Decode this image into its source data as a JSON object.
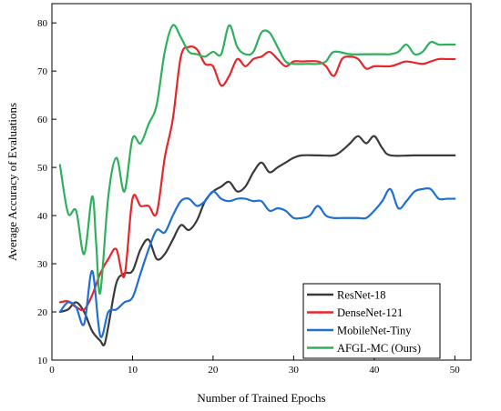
{
  "chart_data": {
    "type": "line",
    "xlabel": "Number of Trained Epochs",
    "ylabel": "Average Accuracy of Evaluations",
    "xlim": [
      0,
      52
    ],
    "ylim": [
      10,
      84
    ],
    "xticks": [
      0,
      10,
      20,
      30,
      40,
      50
    ],
    "yticks": [
      10,
      20,
      30,
      40,
      50,
      60,
      70,
      80
    ],
    "grid": false,
    "legend_position": "bottom-right",
    "series": [
      {
        "name": "ResNet-18",
        "color": "#3a3a3a",
        "points": [
          [
            1,
            20
          ],
          [
            2,
            20.5
          ],
          [
            3,
            22
          ],
          [
            4,
            20
          ],
          [
            5,
            16
          ],
          [
            6,
            14
          ],
          [
            6.5,
            13.2
          ],
          [
            7,
            17
          ],
          [
            8,
            26
          ],
          [
            9,
            28
          ],
          [
            10,
            28.5
          ],
          [
            11,
            33
          ],
          [
            12,
            35
          ],
          [
            13,
            31
          ],
          [
            14,
            32
          ],
          [
            15,
            35
          ],
          [
            16,
            38
          ],
          [
            17,
            37
          ],
          [
            18,
            39
          ],
          [
            19,
            43
          ],
          [
            20,
            45
          ],
          [
            21,
            46
          ],
          [
            22,
            47
          ],
          [
            23,
            45
          ],
          [
            24,
            46
          ],
          [
            25,
            49
          ],
          [
            26,
            51
          ],
          [
            27,
            49
          ],
          [
            28,
            50
          ],
          [
            29,
            51
          ],
          [
            30,
            52
          ],
          [
            31,
            52.5
          ],
          [
            33,
            52.5
          ],
          [
            35,
            52.5
          ],
          [
            36,
            53.5
          ],
          [
            37,
            55
          ],
          [
            38,
            56.5
          ],
          [
            39,
            55
          ],
          [
            40,
            56.5
          ],
          [
            41,
            54
          ],
          [
            42,
            52.5
          ],
          [
            45,
            52.5
          ],
          [
            50,
            52.5
          ]
        ]
      },
      {
        "name": "DenseNet-121",
        "color": "#e8262a",
        "points": [
          [
            1,
            22
          ],
          [
            2,
            22.2
          ],
          [
            3,
            21
          ],
          [
            4,
            20.5
          ],
          [
            5,
            23.5
          ],
          [
            6,
            28
          ],
          [
            7,
            31
          ],
          [
            8,
            33
          ],
          [
            9,
            27.5
          ],
          [
            10,
            43.5
          ],
          [
            11,
            42
          ],
          [
            12,
            42
          ],
          [
            13,
            40.5
          ],
          [
            14,
            52
          ],
          [
            15,
            60
          ],
          [
            16,
            73
          ],
          [
            17,
            75
          ],
          [
            18,
            74.5
          ],
          [
            19,
            71.5
          ],
          [
            20,
            71
          ],
          [
            21,
            67
          ],
          [
            22,
            69
          ],
          [
            23,
            72.5
          ],
          [
            24,
            71
          ],
          [
            25,
            72.5
          ],
          [
            26,
            73
          ],
          [
            27,
            74
          ],
          [
            28,
            72.5
          ],
          [
            29,
            71
          ],
          [
            30,
            72
          ],
          [
            31,
            72
          ],
          [
            33,
            72
          ],
          [
            34,
            71
          ],
          [
            35,
            69
          ],
          [
            36,
            72.5
          ],
          [
            37,
            73
          ],
          [
            38,
            72.5
          ],
          [
            39,
            70.5
          ],
          [
            40,
            71
          ],
          [
            42,
            71
          ],
          [
            43,
            71.5
          ],
          [
            44,
            72
          ],
          [
            46,
            71.5
          ],
          [
            47,
            72
          ],
          [
            48,
            72.5
          ],
          [
            49,
            72.5
          ],
          [
            50,
            72.5
          ]
        ]
      },
      {
        "name": "MobileNet-Tiny",
        "color": "#1f6fd6",
        "points": [
          [
            1,
            20
          ],
          [
            2,
            22
          ],
          [
            3,
            21
          ],
          [
            4,
            17.5
          ],
          [
            5,
            28.5
          ],
          [
            6,
            15
          ],
          [
            7,
            20
          ],
          [
            8,
            20.5
          ],
          [
            9,
            22
          ],
          [
            10,
            23
          ],
          [
            11,
            28
          ],
          [
            12,
            33
          ],
          [
            13,
            37
          ],
          [
            14,
            36.5
          ],
          [
            15,
            40
          ],
          [
            16,
            43
          ],
          [
            17,
            43.5
          ],
          [
            18,
            42
          ],
          [
            19,
            43
          ],
          [
            20,
            45
          ],
          [
            21,
            43.5
          ],
          [
            22,
            43
          ],
          [
            23,
            43.5
          ],
          [
            24,
            43.5
          ],
          [
            25,
            43
          ],
          [
            26,
            43
          ],
          [
            27,
            41
          ],
          [
            28,
            41.5
          ],
          [
            29,
            41
          ],
          [
            30,
            39.5
          ],
          [
            31,
            39.5
          ],
          [
            32,
            40
          ],
          [
            33,
            42
          ],
          [
            34,
            40
          ],
          [
            35,
            39.5
          ],
          [
            36,
            39.5
          ],
          [
            37,
            39.5
          ],
          [
            38,
            39.5
          ],
          [
            39,
            39.5
          ],
          [
            40,
            41
          ],
          [
            41,
            43
          ],
          [
            42,
            45.5
          ],
          [
            43,
            41.5
          ],
          [
            44,
            43
          ],
          [
            45,
            45
          ],
          [
            46,
            45.5
          ],
          [
            47,
            45.5
          ],
          [
            48,
            43.5
          ],
          [
            49,
            43.5
          ],
          [
            50,
            43.5
          ]
        ]
      },
      {
        "name": "AFGL-MC (Ours)",
        "color": "#2eb05c",
        "points": [
          [
            1,
            50.5
          ],
          [
            2,
            40.5
          ],
          [
            3,
            41
          ],
          [
            4,
            32
          ],
          [
            5,
            44
          ],
          [
            5.5,
            34
          ],
          [
            6,
            24
          ],
          [
            7,
            44
          ],
          [
            8,
            52
          ],
          [
            9,
            45
          ],
          [
            10,
            56
          ],
          [
            11,
            55
          ],
          [
            12,
            59
          ],
          [
            13,
            63
          ],
          [
            14,
            74
          ],
          [
            15,
            79.5
          ],
          [
            16,
            77
          ],
          [
            17,
            74
          ],
          [
            18,
            73.5
          ],
          [
            19,
            73
          ],
          [
            20,
            74
          ],
          [
            21,
            73.5
          ],
          [
            22,
            79.5
          ],
          [
            23,
            75
          ],
          [
            24,
            73.5
          ],
          [
            25,
            74
          ],
          [
            26,
            78
          ],
          [
            27,
            78
          ],
          [
            28,
            75
          ],
          [
            29,
            72
          ],
          [
            30,
            71.5
          ],
          [
            32,
            71.5
          ],
          [
            33,
            71.5
          ],
          [
            34,
            72
          ],
          [
            35,
            74
          ],
          [
            37,
            73.5
          ],
          [
            39,
            73.5
          ],
          [
            41,
            73.5
          ],
          [
            42,
            73.5
          ],
          [
            43,
            74
          ],
          [
            44,
            75.5
          ],
          [
            45,
            73.5
          ],
          [
            46,
            74
          ],
          [
            47,
            76
          ],
          [
            48,
            75.5
          ],
          [
            49,
            75.5
          ],
          [
            50,
            75.5
          ]
        ]
      }
    ]
  }
}
